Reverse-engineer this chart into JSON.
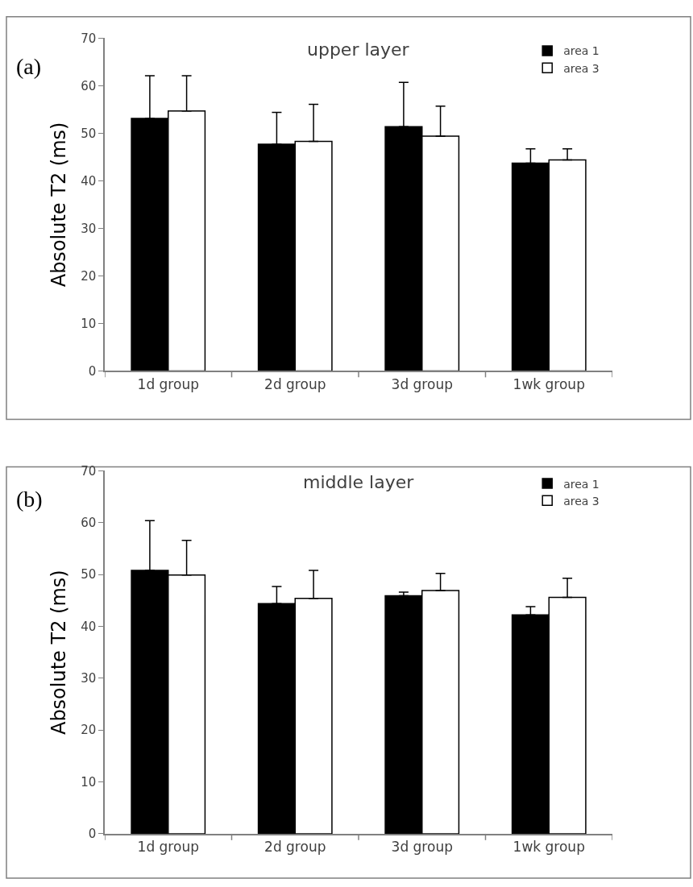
{
  "chart_data": [
    {
      "type": "bar",
      "title": "upper layer",
      "ylabel": "Absolute T2 (ms)",
      "annotations": [
        "(a)"
      ],
      "categories": [
        "1d group",
        "2d group",
        "3d group",
        "1wk group"
      ],
      "ylim": [
        0,
        70
      ],
      "yticks": [
        0,
        10,
        20,
        30,
        40,
        50,
        60,
        70
      ],
      "grid": false,
      "legend": "top right",
      "series": [
        {
          "name": "area 1",
          "color": "#000000",
          "values": [
            53.1,
            47.7,
            51.4,
            43.7
          ],
          "errors": [
            [
              53.1,
              62.1
            ],
            [
              47.7,
              54.4
            ],
            [
              51.4,
              60.7
            ],
            [
              43.7,
              46.7
            ]
          ]
        },
        {
          "name": "area 3",
          "color": "#ffffff",
          "values": [
            54.7,
            48.3,
            49.4,
            44.4
          ],
          "errors": [
            [
              54.7,
              62.1
            ],
            [
              48.3,
              56.1
            ],
            [
              49.4,
              55.7
            ],
            [
              44.4,
              46.7
            ]
          ]
        }
      ]
    },
    {
      "type": "bar",
      "title": "middle layer",
      "ylabel": "Absolute T2 (ms)",
      "annotations": [
        "(b)"
      ],
      "categories": [
        "1d group",
        "2d group",
        "3d group",
        "1wk group"
      ],
      "ylim": [
        0,
        70
      ],
      "yticks": [
        0,
        10,
        20,
        30,
        40,
        50,
        60,
        70
      ],
      "grid": false,
      "legend": "top right",
      "series": [
        {
          "name": "area 1",
          "color": "#000000",
          "values": [
            50.8,
            44.4,
            45.9,
            42.2
          ],
          "errors": [
            [
              50.8,
              60.4
            ],
            [
              44.4,
              47.7
            ],
            [
              45.9,
              46.6
            ],
            [
              42.2,
              43.8
            ]
          ]
        },
        {
          "name": "area 3",
          "color": "#ffffff",
          "values": [
            49.9,
            45.4,
            46.9,
            45.6
          ],
          "errors": [
            [
              49.9,
              56.6
            ],
            [
              45.4,
              50.8
            ],
            [
              46.9,
              50.2
            ],
            [
              45.6,
              49.3
            ]
          ]
        }
      ]
    }
  ]
}
